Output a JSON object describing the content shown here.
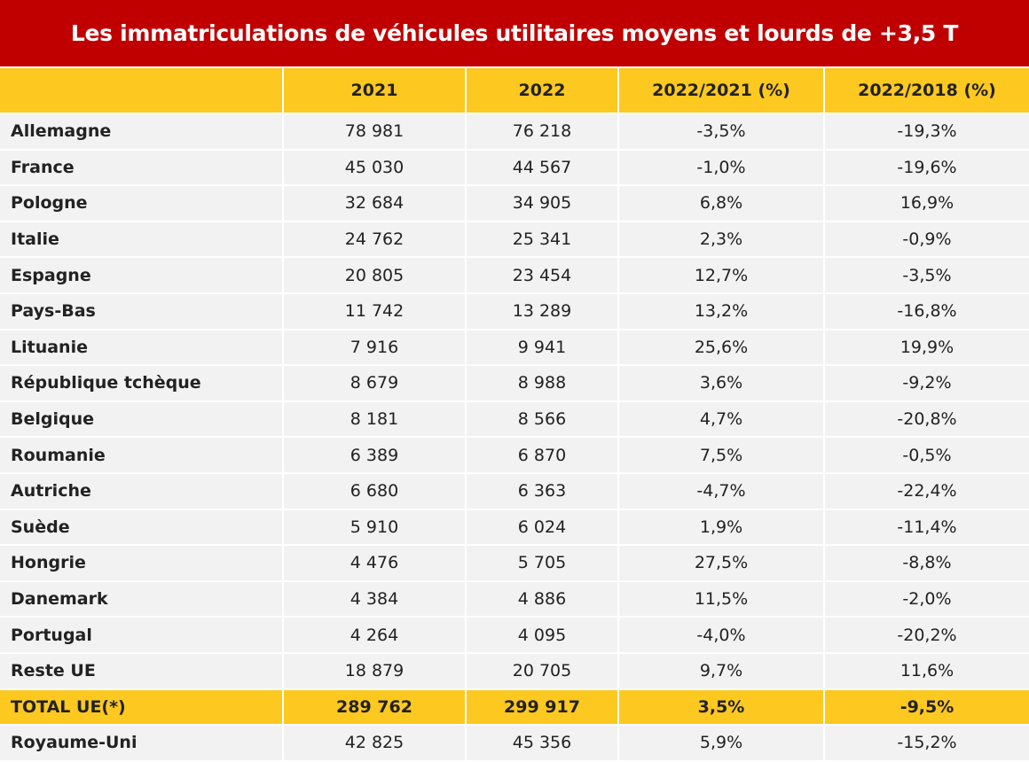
{
  "title": "Les immatriculations de véhicules utilitaires moyens et lourds de +3,5 T",
  "colors": {
    "title_bg": "#c00000",
    "header_bg": "#fdc820",
    "row_bg": "#f2f2f2"
  },
  "headers": [
    "",
    "2021",
    "2022",
    "2022/2021 (%)",
    "2022/2018 (%)"
  ],
  "rows": [
    [
      "Allemagne",
      "78 981",
      "76 218",
      "-3,5%",
      "-19,3%"
    ],
    [
      "France",
      "45 030",
      "44 567",
      "-1,0%",
      "-19,6%"
    ],
    [
      "Pologne",
      "32 684",
      "34 905",
      "6,8%",
      "16,9%"
    ],
    [
      "Italie",
      "24 762",
      "25 341",
      "2,3%",
      "-0,9%"
    ],
    [
      "Espagne",
      "20 805",
      "23 454",
      "12,7%",
      "-3,5%"
    ],
    [
      "Pays-Bas",
      "11 742",
      "13 289",
      "13,2%",
      "-16,8%"
    ],
    [
      "Lituanie",
      "7 916",
      "9 941",
      "25,6%",
      "19,9%"
    ],
    [
      "République tchèque",
      "8 679",
      "8 988",
      "3,6%",
      "-9,2%"
    ],
    [
      "Belgique",
      "8 181",
      "8 566",
      "4,7%",
      "-20,8%"
    ],
    [
      "Roumanie",
      "6 389",
      "6 870",
      "7,5%",
      "-0,5%"
    ],
    [
      "Autriche",
      "6 680",
      "6 363",
      "-4,7%",
      "-22,4%"
    ],
    [
      "Suède",
      "5 910",
      "6 024",
      "1,9%",
      "-11,4%"
    ],
    [
      "Hongrie",
      "4 476",
      "5 705",
      "27,5%",
      "-8,8%"
    ],
    [
      "Danemark",
      "4 384",
      "4 886",
      "11,5%",
      "-2,0%"
    ],
    [
      "Portugal",
      "4 264",
      "4 095",
      "-4,0%",
      "-20,2%"
    ],
    [
      "Reste UE",
      "18 879",
      "20 705",
      "9,7%",
      "11,6%"
    ],
    [
      "TOTAL UE(*)",
      "289 762",
      "299 917",
      "3,5%",
      "-9,5%"
    ],
    [
      "Royaume-Uni",
      "42 825",
      "45 356",
      "5,9%",
      "-15,2%"
    ]
  ],
  "total_row_index": 16
}
